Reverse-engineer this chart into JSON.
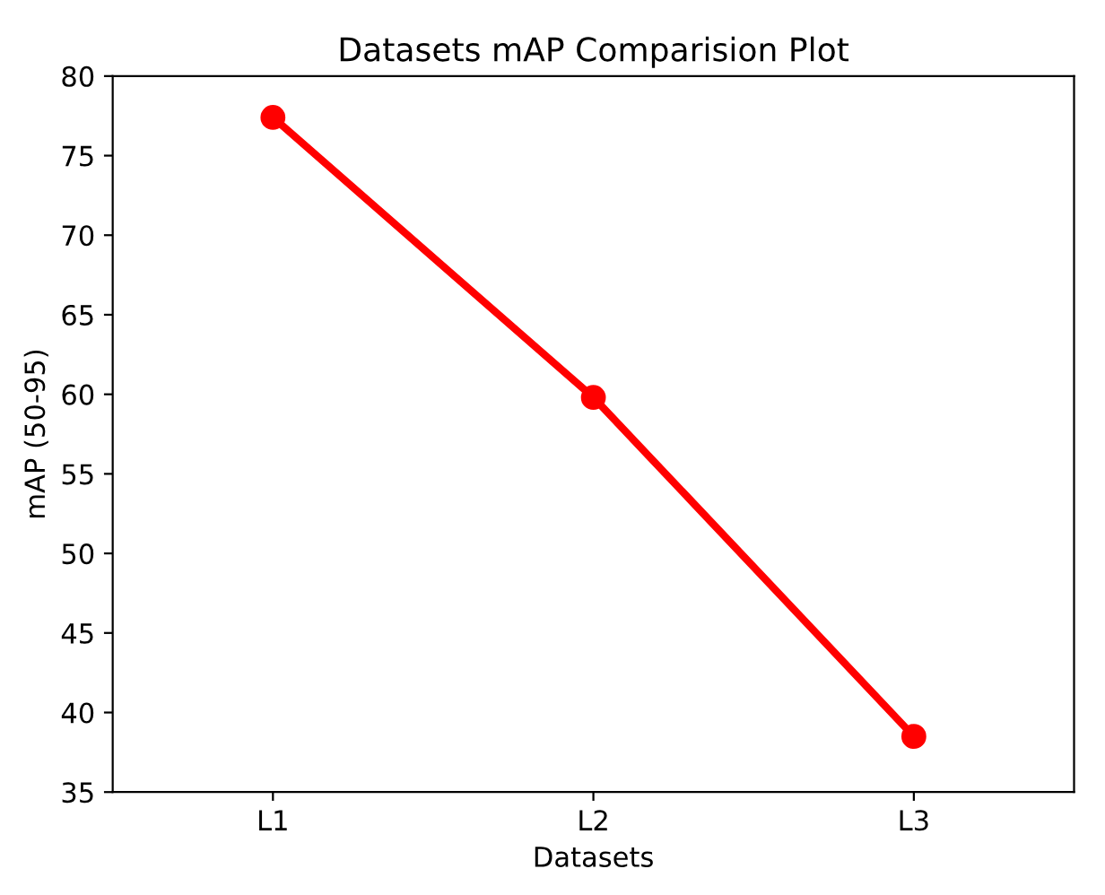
{
  "chart_data": {
    "type": "line",
    "title": "Datasets mAP Comparision Plot",
    "xlabel": "Datasets",
    "ylabel": "mAP (50-95)",
    "categories": [
      "L1",
      "L2",
      "L3"
    ],
    "series": [
      {
        "color": "#ff0000",
        "values": [
          77.4,
          59.8,
          38.5
        ]
      }
    ],
    "ylim": [
      35,
      80
    ],
    "yticks": [
      35,
      40,
      45,
      50,
      55,
      60,
      65,
      70,
      75,
      80
    ],
    "marker": "circle",
    "line_style": "solid",
    "grid": false,
    "legend": false
  }
}
